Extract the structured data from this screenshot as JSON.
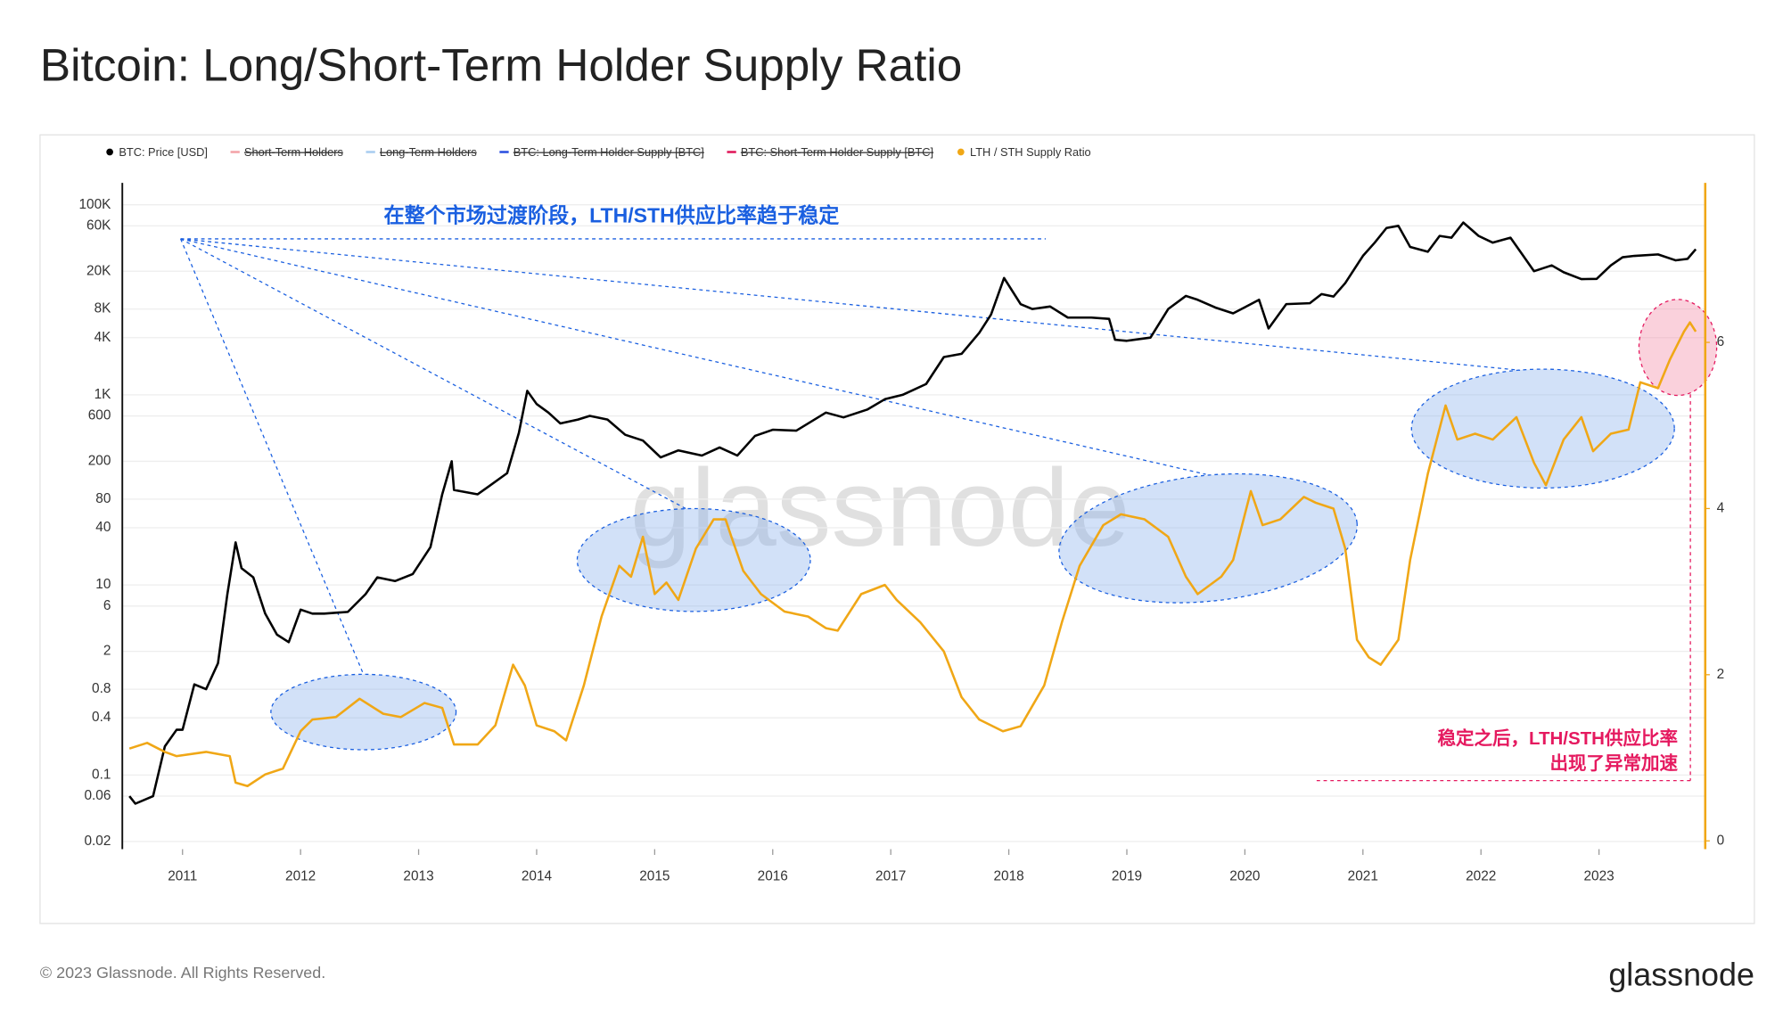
{
  "title": "Bitcoin: Long/Short-Term Holder Supply Ratio",
  "footer": "© 2023 Glassnode. All Rights Reserved.",
  "logo": "glassnode",
  "chart_data": {
    "type": "line",
    "watermark": "glassnode",
    "xlim": [
      2010.49,
      2023.9
    ],
    "xticks": [
      2011,
      2012,
      2013,
      2014,
      2015,
      2016,
      2017,
      2018,
      2019,
      2020,
      2021,
      2022,
      2023
    ],
    "ylim": [
      0.0166,
      170000
    ],
    "log_y": true,
    "yticks": [
      0.02,
      0.06,
      0.1,
      0.4,
      0.8,
      2,
      6,
      10,
      40,
      80,
      200,
      600,
      {
        "value": 1000,
        "label": "1K"
      },
      {
        "value": 4000,
        "label": "4K"
      },
      {
        "value": 8000,
        "label": "8K"
      },
      {
        "value": 20000,
        "label": "20K"
      },
      {
        "value": 60000,
        "label": "60K"
      },
      {
        "value": 100000,
        "label": "100K"
      }
    ],
    "y2lim": [
      -0.1,
      7.92
    ],
    "y2ticks": [
      0,
      2,
      4,
      6
    ],
    "grid": true,
    "annotations": [
      "在整个市场过渡阶段，LTH/STH供应比率趋于稳定",
      "稳定之后，LTH/STH供应比率",
      "出现了异常加速"
    ],
    "series": [
      {
        "name": "BTC: Price [USD]",
        "color": "#000000",
        "visible": true,
        "x": [
          2010.55,
          2010.6,
          2010.75,
          2010.85,
          2010.95,
          2011.0,
          2011.1,
          2011.2,
          2011.3,
          2011.38,
          2011.45,
          2011.5,
          2011.6,
          2011.7,
          2011.8,
          2011.9,
          2012.0,
          2012.1,
          2012.2,
          2012.4,
          2012.55,
          2012.65,
          2012.8,
          2012.95,
          2013.1,
          2013.2,
          2013.28,
          2013.3,
          2013.5,
          2013.6,
          2013.75,
          2013.85,
          2013.92,
          2014.0,
          2014.1,
          2014.2,
          2014.35,
          2014.45,
          2014.6,
          2014.75,
          2014.9,
          2015.05,
          2015.2,
          2015.4,
          2015.55,
          2015.7,
          2015.85,
          2016.0,
          2016.2,
          2016.45,
          2016.6,
          2016.8,
          2016.95,
          2017.1,
          2017.3,
          2017.45,
          2017.6,
          2017.75,
          2017.85,
          2017.96,
          2018.1,
          2018.2,
          2018.35,
          2018.5,
          2018.7,
          2018.85,
          2018.9,
          2019.0,
          2019.2,
          2019.35,
          2019.5,
          2019.6,
          2019.75,
          2019.9,
          2020.05,
          2020.12,
          2020.2,
          2020.35,
          2020.55,
          2020.65,
          2020.75,
          2020.85,
          2021.0,
          2021.1,
          2021.2,
          2021.3,
          2021.4,
          2021.55,
          2021.65,
          2021.75,
          2021.85,
          2021.98,
          2022.1,
          2022.25,
          2022.35,
          2022.45,
          2022.6,
          2022.7,
          2022.85,
          2022.98,
          2023.1,
          2023.2,
          2023.3,
          2023.5,
          2023.65,
          2023.75,
          2023.82
        ],
        "values": [
          0.06,
          0.05,
          0.06,
          0.2,
          0.3,
          0.3,
          0.9,
          0.8,
          1.5,
          8,
          28,
          15,
          12,
          5,
          3,
          2.5,
          5.5,
          5,
          5,
          5.2,
          8,
          12,
          11,
          13,
          25,
          90,
          200,
          100,
          90,
          110,
          150,
          400,
          1100,
          800,
          650,
          500,
          550,
          600,
          550,
          380,
          330,
          220,
          260,
          230,
          280,
          230,
          370,
          430,
          420,
          650,
          580,
          700,
          900,
          1000,
          1300,
          2500,
          2700,
          4500,
          7000,
          17000,
          9000,
          8000,
          8500,
          6500,
          6500,
          6300,
          3800,
          3700,
          4000,
          8000,
          11000,
          10000,
          8300,
          7200,
          9000,
          10000,
          5000,
          9000,
          9200,
          11500,
          10800,
          15000,
          29000,
          40000,
          57000,
          60000,
          36000,
          32000,
          47000,
          45000,
          65000,
          47000,
          40000,
          45000,
          30000,
          20000,
          23000,
          19500,
          16500,
          16600,
          23000,
          28000,
          29000,
          30000,
          26000,
          27000,
          34000
        ]
      },
      {
        "name": "Short-Term Holders",
        "color": "#f4a3a8",
        "visible": false
      },
      {
        "name": "Long-Term Holders",
        "color": "#a9cdf0",
        "visible": false
      },
      {
        "name": "BTC: Long-Term Holder Supply [BTC]",
        "color": "#2b50e0",
        "visible": false
      },
      {
        "name": "BTC: Short-Term Holder Supply [BTC]",
        "color": "#e0185a",
        "visible": false
      },
      {
        "name": "LTH / STH Supply Ratio",
        "color": "#f0a716",
        "visible": true,
        "axis": "y2",
        "x": [
          2010.55,
          2010.7,
          2010.85,
          2010.95,
          2011.2,
          2011.4,
          2011.45,
          2011.55,
          2011.7,
          2011.85,
          2012.0,
          2012.1,
          2012.3,
          2012.5,
          2012.7,
          2012.85,
          2013.05,
          2013.2,
          2013.3,
          2013.5,
          2013.65,
          2013.8,
          2013.9,
          2014.0,
          2014.15,
          2014.25,
          2014.4,
          2014.55,
          2014.7,
          2014.8,
          2014.9,
          2015.0,
          2015.1,
          2015.2,
          2015.35,
          2015.5,
          2015.6,
          2015.65,
          2015.75,
          2015.9,
          2016.1,
          2016.3,
          2016.45,
          2016.55,
          2016.75,
          2016.95,
          2017.05,
          2017.25,
          2017.45,
          2017.6,
          2017.75,
          2017.95,
          2018.1,
          2018.3,
          2018.45,
          2018.6,
          2018.8,
          2018.95,
          2019.15,
          2019.35,
          2019.5,
          2019.6,
          2019.8,
          2019.9,
          2020.05,
          2020.15,
          2020.3,
          2020.5,
          2020.6,
          2020.75,
          2020.85,
          2020.95,
          2021.05,
          2021.15,
          2021.3,
          2021.4,
          2021.55,
          2021.7,
          2021.8,
          2021.95,
          2022.1,
          2022.3,
          2022.45,
          2022.55,
          2022.7,
          2022.85,
          2022.95,
          2023.1,
          2023.25,
          2023.35,
          2023.5,
          2023.6,
          2023.72,
          2023.77,
          2023.82
        ],
        "values": [
          1.11,
          1.18,
          1.07,
          1.02,
          1.07,
          1.02,
          0.7,
          0.66,
          0.8,
          0.87,
          1.32,
          1.46,
          1.49,
          1.71,
          1.53,
          1.49,
          1.66,
          1.6,
          1.16,
          1.16,
          1.39,
          2.12,
          1.87,
          1.39,
          1.32,
          1.21,
          1.87,
          2.7,
          3.31,
          3.18,
          3.66,
          2.97,
          3.11,
          2.9,
          3.52,
          3.87,
          3.87,
          3.66,
          3.25,
          2.97,
          2.76,
          2.7,
          2.56,
          2.53,
          2.97,
          3.08,
          2.9,
          2.63,
          2.28,
          1.73,
          1.46,
          1.32,
          1.38,
          1.87,
          2.63,
          3.31,
          3.8,
          3.93,
          3.87,
          3.66,
          3.18,
          2.97,
          3.18,
          3.38,
          4.21,
          3.8,
          3.87,
          4.14,
          4.07,
          4.0,
          3.52,
          2.42,
          2.21,
          2.12,
          2.42,
          3.38,
          4.42,
          5.24,
          4.83,
          4.9,
          4.83,
          5.1,
          4.55,
          4.28,
          4.83,
          5.1,
          4.69,
          4.9,
          4.95,
          5.52,
          5.45,
          5.79,
          6.13,
          6.24,
          6.13
        ]
      }
    ]
  }
}
